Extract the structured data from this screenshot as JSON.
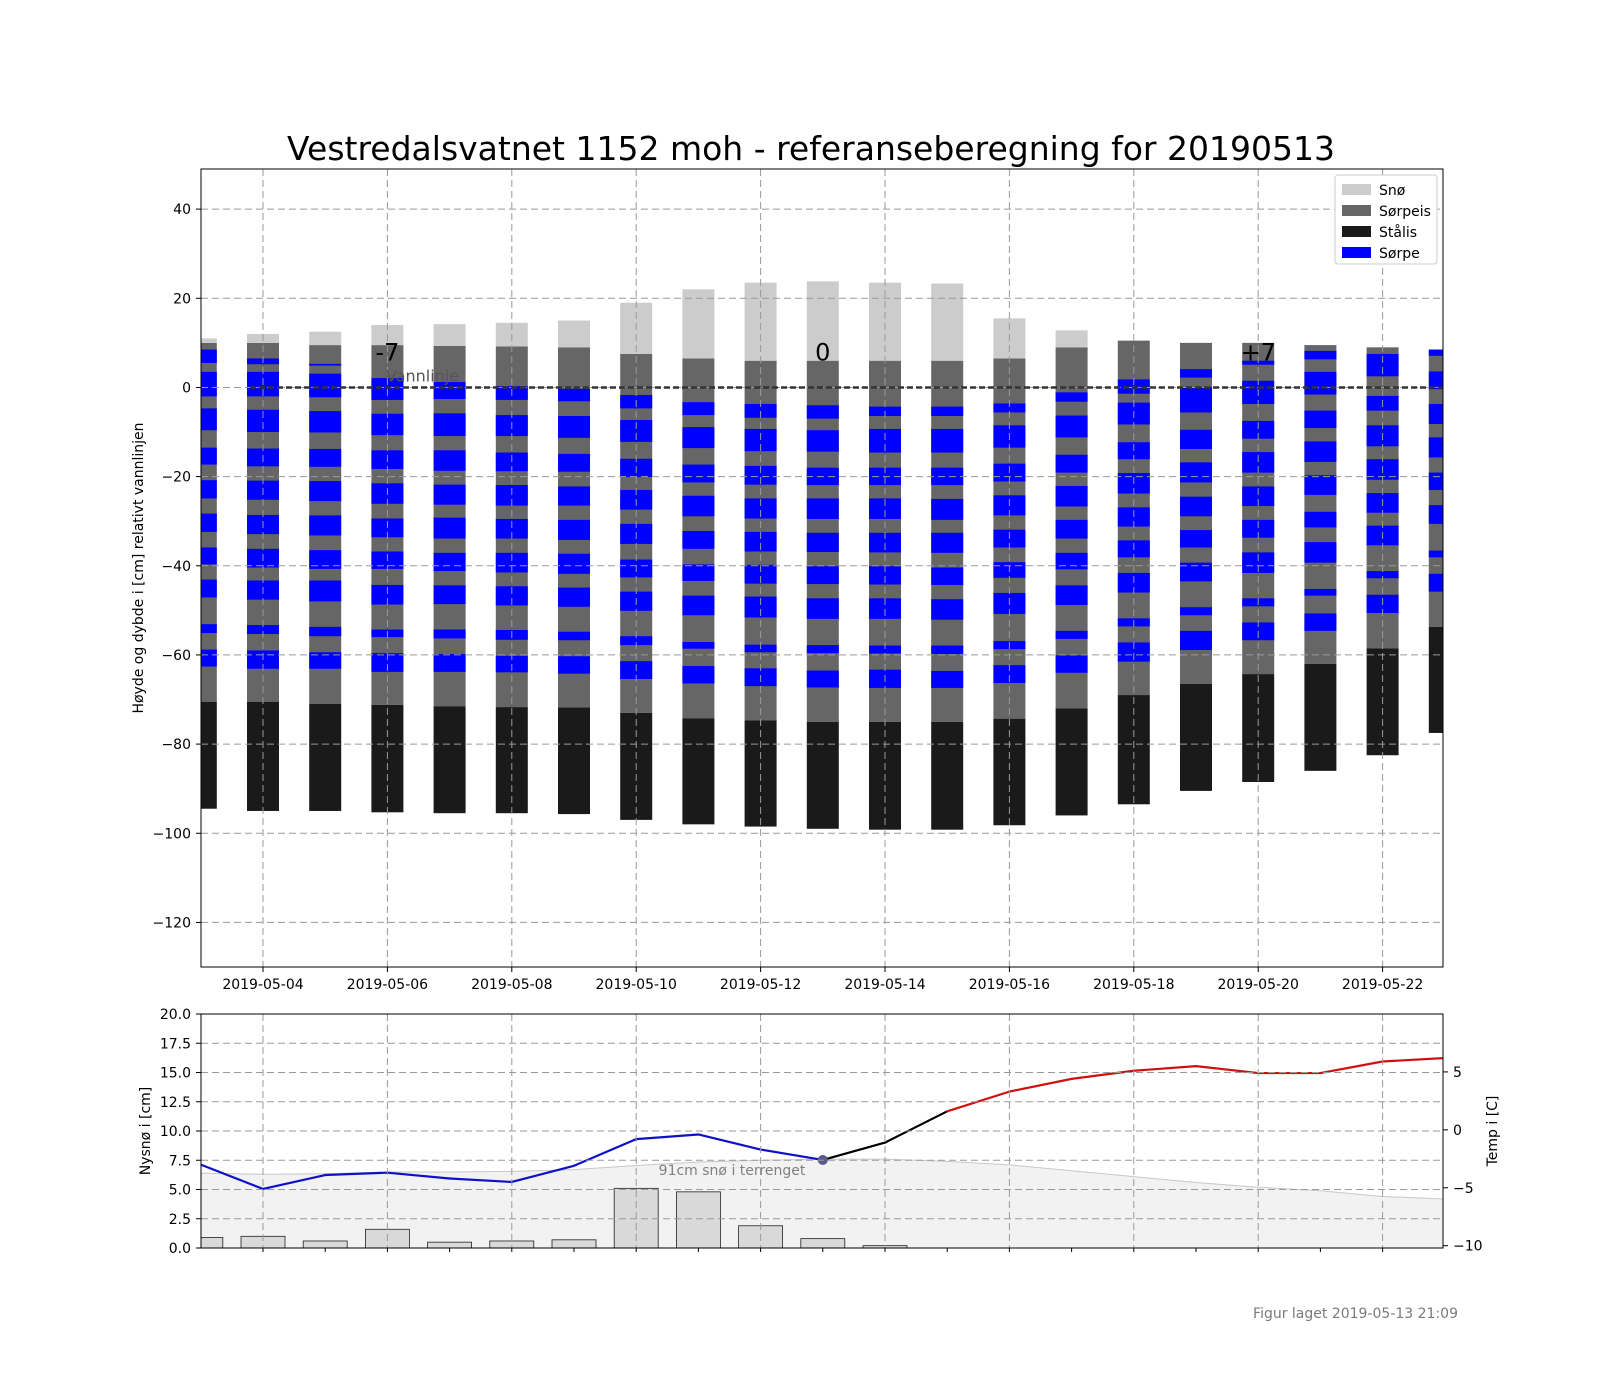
{
  "title": "Vestredalsvatnet 1152 moh - referanseberegning for 20190513",
  "footer": "Figur laget 2019-05-13 21:09",
  "colors": {
    "sno": "#cccccc",
    "sorpeis": "#666666",
    "stalis": "#1a1a1a",
    "sorpe": "#0000ff",
    "temp_cold": "#1010c8",
    "temp_warm": "#d01010",
    "temp_fc": "#000000",
    "terrain": "#f2f2f2",
    "bar_fill": "#d9d9d9"
  },
  "chart_data": [
    {
      "type": "bar",
      "stacked": true,
      "ylabel": "Høyde og dybde i [cm] relativt vannlinjen",
      "ylim": [
        -130,
        49
      ],
      "yticks": [
        40,
        20,
        0,
        -20,
        -40,
        -60,
        -80,
        -100,
        -120
      ],
      "grid": true,
      "legend_position": "top-right",
      "legend": [
        "Snø",
        "Sørpeis",
        "Stålis",
        "Sørpe"
      ],
      "xticks": [
        "2019-05-04",
        "2019-05-06",
        "2019-05-08",
        "2019-05-10",
        "2019-05-12",
        "2019-05-14",
        "2019-05-16",
        "2019-05-18",
        "2019-05-20",
        "2019-05-22"
      ],
      "waterline_label": "Vannlinje",
      "annotations": [
        {
          "text": "-7",
          "date": "2019-05-06",
          "y": 6
        },
        {
          "text": "0",
          "date": "2019-05-13",
          "y": 6
        },
        {
          "text": "+7",
          "date": "2019-05-20",
          "y": 6
        }
      ],
      "dates": [
        "2019-05-03",
        "2019-05-04",
        "2019-05-05",
        "2019-05-06",
        "2019-05-07",
        "2019-05-08",
        "2019-05-09",
        "2019-05-10",
        "2019-05-11",
        "2019-05-12",
        "2019-05-13",
        "2019-05-14",
        "2019-05-15",
        "2019-05-16",
        "2019-05-17",
        "2019-05-18",
        "2019-05-19",
        "2019-05-20",
        "2019-05-21",
        "2019-05-22",
        "2019-05-23"
      ],
      "snow": [
        [
          10,
          11
        ],
        [
          10,
          12
        ],
        [
          9.5,
          12.5
        ],
        [
          9.5,
          14
        ],
        [
          9.3,
          14.2
        ],
        [
          9.2,
          14.5
        ],
        [
          9,
          15
        ],
        [
          7.5,
          19
        ],
        [
          6.5,
          22
        ],
        [
          6,
          23.5
        ],
        [
          6,
          23.8
        ],
        [
          6,
          23.5
        ],
        [
          6,
          23.3
        ],
        [
          6.5,
          15.5
        ],
        [
          9,
          12.8
        ],
        [
          10.5,
          10.5
        ],
        [
          10,
          10
        ],
        [
          10,
          10
        ],
        [
          9.5,
          9.5
        ],
        [
          9,
          9
        ],
        [
          8.5,
          8.5
        ]
      ],
      "stalis": [
        [
          -70.5,
          -94.5
        ],
        [
          -70.5,
          -95
        ],
        [
          -71,
          -95
        ],
        [
          -71.2,
          -95.3
        ],
        [
          -71.5,
          -95.5
        ],
        [
          -71.7,
          -95.5
        ],
        [
          -71.8,
          -95.7
        ],
        [
          -73,
          -97
        ],
        [
          -74.2,
          -98
        ],
        [
          -74.7,
          -98.5
        ],
        [
          -75,
          -99
        ],
        [
          -75,
          -99.2
        ],
        [
          -75,
          -99.2
        ],
        [
          -74.3,
          -98.2
        ],
        [
          -72,
          -96
        ],
        [
          -69,
          -93.5
        ],
        [
          -66.5,
          -90.5
        ],
        [
          -64.3,
          -88.5
        ],
        [
          -62,
          -86
        ],
        [
          -58.5,
          -82.5
        ],
        [
          -53.7,
          -77.5
        ]
      ],
      "sorpe_layers": [
        [
          [
            8.5,
            5.5
          ],
          [
            3.5,
            -2
          ],
          [
            -4.7,
            -9.6
          ],
          [
            -13.5,
            -17.3
          ],
          [
            -20.8,
            -24.9
          ],
          [
            -28.3,
            -32.4
          ],
          [
            -35.9,
            -39.7
          ],
          [
            -43.1,
            -47.1
          ],
          [
            -53.1,
            -55.1
          ],
          [
            -58.8,
            -62.6
          ]
        ],
        [
          [
            6.5,
            5.2
          ],
          [
            3.5,
            -2
          ],
          [
            -5,
            -10
          ],
          [
            -13.7,
            -17.7
          ],
          [
            -20.9,
            -25.2
          ],
          [
            -28.6,
            -32.9
          ],
          [
            -36.2,
            -40.4
          ],
          [
            -43.3,
            -47.6
          ],
          [
            -53.3,
            -55.3
          ],
          [
            -59,
            -63.1
          ]
        ],
        [
          [
            5.3,
            4.9
          ],
          [
            3.1,
            -2.2
          ],
          [
            -5.3,
            -10.1
          ],
          [
            -13.8,
            -17.8
          ],
          [
            -21,
            -25.5
          ],
          [
            -28.7,
            -33.2
          ],
          [
            -36.5,
            -40.7
          ],
          [
            -43.3,
            -48
          ],
          [
            -53.7,
            -55.8
          ],
          [
            -59.4,
            -63.1
          ]
        ],
        [
          [
            2.1,
            -2.8
          ],
          [
            -5.9,
            -10.7
          ],
          [
            -14.1,
            -18.3
          ],
          [
            -21.5,
            -26.1
          ],
          [
            -29.4,
            -33.6
          ],
          [
            -36.8,
            -40.7
          ],
          [
            -44.3,
            -48.7
          ],
          [
            -54.3,
            -56
          ],
          [
            -59.6,
            -63.8
          ]
        ],
        [
          [
            1.2,
            -2.6
          ],
          [
            -5.8,
            -10.9
          ],
          [
            -14.1,
            -18.7
          ],
          [
            -21.8,
            -26.3
          ],
          [
            -29.2,
            -33.9
          ],
          [
            -37.1,
            -41.2
          ],
          [
            -44.4,
            -48.6
          ],
          [
            -54.3,
            -56.3
          ],
          [
            -59.8,
            -63.8
          ]
        ],
        [
          [
            0.3,
            -2.8
          ],
          [
            -6.2,
            -10.9
          ],
          [
            -14.6,
            -18.8
          ],
          [
            -21.9,
            -26.5
          ],
          [
            -29.5,
            -33.9
          ],
          [
            -37.1,
            -41.5
          ],
          [
            -44.6,
            -48.9
          ],
          [
            -54.4,
            -56.6
          ],
          [
            -60.2,
            -63.9
          ]
        ],
        [
          [
            -0.3,
            -3.1
          ],
          [
            -6.4,
            -11.3
          ],
          [
            -14.9,
            -18.9
          ],
          [
            -22.2,
            -26.5
          ],
          [
            -29.7,
            -34.2
          ],
          [
            -37.3,
            -41.8
          ],
          [
            -44.9,
            -49.2
          ],
          [
            -54.8,
            -56.7
          ],
          [
            -60.3,
            -64.2
          ]
        ],
        [
          [
            -1.7,
            -4.7
          ],
          [
            -7.3,
            -12.2
          ],
          [
            -16,
            -20.1
          ],
          [
            -23,
            -27.4
          ],
          [
            -30.6,
            -35.1
          ],
          [
            -38.6,
            -42.6
          ],
          [
            -45.8,
            -50.1
          ],
          [
            -55.8,
            -57.8
          ],
          [
            -61.4,
            -65.4
          ]
        ],
        [
          [
            -3.3,
            -6.2
          ],
          [
            -8.9,
            -13.6
          ],
          [
            -17.3,
            -21.3
          ],
          [
            -24.3,
            -28.9
          ],
          [
            -32.2,
            -36.2
          ],
          [
            -39.7,
            -43.4
          ],
          [
            -46.7,
            -51.1
          ],
          [
            -57.1,
            -58.6
          ],
          [
            -62.5,
            -66.4
          ]
        ],
        [
          [
            -3.7,
            -6.8
          ],
          [
            -9.3,
            -14.3
          ],
          [
            -17.6,
            -21.8
          ],
          [
            -24.9,
            -29.4
          ],
          [
            -32.4,
            -36.8
          ],
          [
            -39.8,
            -44
          ],
          [
            -46.9,
            -51.6
          ],
          [
            -57.7,
            -59.4
          ],
          [
            -63,
            -67
          ]
        ],
        [
          [
            -4,
            -7
          ],
          [
            -9.6,
            -14.4
          ],
          [
            -18,
            -21.9
          ],
          [
            -24.9,
            -29.5
          ],
          [
            -32.6,
            -36.9
          ],
          [
            -40.1,
            -44.1
          ],
          [
            -47.3,
            -51.9
          ],
          [
            -57.8,
            -59.6
          ],
          [
            -63.5,
            -67.3
          ]
        ],
        [
          [
            -4.3,
            -6.4
          ],
          [
            -9.3,
            -14.6
          ],
          [
            -18,
            -21.9
          ],
          [
            -24.9,
            -29.5
          ],
          [
            -32.6,
            -37
          ],
          [
            -40.1,
            -44.2
          ],
          [
            -47.3,
            -51.9
          ],
          [
            -57.9,
            -59.7
          ],
          [
            -63.3,
            -67.4
          ]
        ],
        [
          [
            -4.3,
            -6.4
          ],
          [
            -9.3,
            -14.6
          ],
          [
            -18,
            -21.9
          ],
          [
            -25,
            -29.7
          ],
          [
            -32.6,
            -37.1
          ],
          [
            -40.4,
            -44.3
          ],
          [
            -47.5,
            -52.1
          ],
          [
            -57.9,
            -59.8
          ],
          [
            -63.6,
            -67.4
          ]
        ],
        [
          [
            -3.6,
            -5.6
          ],
          [
            -8.5,
            -13.5
          ],
          [
            -17.1,
            -21.1
          ],
          [
            -24.2,
            -28.7
          ],
          [
            -31.9,
            -35.9
          ],
          [
            -39.2,
            -42.7
          ],
          [
            -46.1,
            -50.8
          ],
          [
            -56.9,
            -58.7
          ],
          [
            -62.3,
            -66.3
          ]
        ],
        [
          [
            -1.1,
            -3.2
          ],
          [
            -6.3,
            -11.2
          ],
          [
            -15.1,
            -19.1
          ],
          [
            -22.1,
            -26.7
          ],
          [
            -29.7,
            -33.9
          ],
          [
            -37.1,
            -40.8
          ],
          [
            -44.4,
            -48.8
          ],
          [
            -54.6,
            -56.4
          ],
          [
            -60.1,
            -64
          ]
        ],
        [
          [
            1.8,
            -1.4
          ],
          [
            -3.4,
            -8.3
          ],
          [
            -12.3,
            -16.1
          ],
          [
            -19.2,
            -23.8
          ],
          [
            -26.9,
            -31.2
          ],
          [
            -34.3,
            -38.1
          ],
          [
            -41.6,
            -46
          ],
          [
            -51.8,
            -53.6
          ],
          [
            -57.2,
            -61.5
          ]
        ],
        [
          [
            4.1,
            2.2
          ],
          [
            0.1,
            -5.6
          ],
          [
            -9.5,
            -13.8
          ],
          [
            -16.8,
            -21.3
          ],
          [
            -24.5,
            -28.9
          ],
          [
            -32,
            -35.9
          ],
          [
            -39.3,
            -43.5
          ],
          [
            -49.3,
            -51.1
          ],
          [
            -54.6,
            -58.9
          ]
        ],
        [
          [
            6,
            5.1
          ],
          [
            1.5,
            -3.7
          ],
          [
            -7.5,
            -11.5
          ],
          [
            -14.5,
            -19.1
          ],
          [
            -22.2,
            -26.6
          ],
          [
            -29.7,
            -33.7
          ],
          [
            -37,
            -41.6
          ],
          [
            -47.3,
            -49.1
          ],
          [
            -52.7,
            -56.7
          ]
        ],
        [
          [
            8.2,
            6.3
          ],
          [
            3.5,
            -1.6
          ],
          [
            -5.2,
            -9.1
          ],
          [
            -12.1,
            -16.7
          ],
          [
            -19.7,
            -24.1
          ],
          [
            -27.9,
            -31.4
          ],
          [
            -34.7,
            -39.3
          ],
          [
            -45.2,
            -46.7
          ],
          [
            -50.7,
            -54.6
          ]
        ],
        [
          [
            7.5,
            2.5
          ],
          [
            -1.9,
            -5.2
          ],
          [
            -8.5,
            -13.2
          ],
          [
            -16.1,
            -20.7
          ],
          [
            -23.7,
            -28.1
          ],
          [
            -31,
            -35.4
          ],
          [
            -41.2,
            -42.8
          ],
          [
            -46.5,
            -50.6
          ]
        ],
        [
          [
            8.5,
            7.1
          ],
          [
            3.6,
            -0.4
          ],
          [
            -3.7,
            -8.2
          ],
          [
            -11.2,
            -15.7
          ],
          [
            -19.1,
            -23
          ],
          [
            -26.4,
            -30.6
          ],
          [
            -36.6,
            -38.1
          ],
          [
            -41.8,
            -45.8
          ]
        ]
      ]
    },
    {
      "type": "bar",
      "ylabel": "Nysnø i [cm]",
      "ylim": [
        0,
        20
      ],
      "yticks": [
        0.0,
        2.5,
        5.0,
        7.5,
        10.0,
        12.5,
        15.0,
        17.5,
        20.0
      ],
      "grid": true,
      "terrain_label": "91cm snø i terrenget",
      "dates": [
        "2019-05-03",
        "2019-05-04",
        "2019-05-05",
        "2019-05-06",
        "2019-05-07",
        "2019-05-08",
        "2019-05-09",
        "2019-05-10",
        "2019-05-11",
        "2019-05-12",
        "2019-05-13",
        "2019-05-14",
        "2019-05-15",
        "2019-05-16",
        "2019-05-17",
        "2019-05-18",
        "2019-05-19",
        "2019-05-20",
        "2019-05-21",
        "2019-05-22",
        "2019-05-23"
      ],
      "new_snow": [
        0.9,
        1.0,
        0.6,
        1.6,
        0.5,
        0.6,
        0.7,
        5.1,
        4.8,
        1.9,
        0.8,
        0.2,
        0,
        0,
        0,
        0,
        0,
        0,
        0,
        0,
        0
      ],
      "terrain_snow": [
        6.4,
        6.3,
        6.35,
        6.5,
        6.5,
        6.55,
        6.7,
        7.05,
        7.35,
        7.5,
        7.6,
        7.6,
        7.4,
        7.1,
        6.6,
        6.1,
        5.6,
        5.2,
        4.9,
        4.4,
        4.2
      ],
      "secondary_axis": {
        "ylabel": "Temp i [C]",
        "yticks": [
          5,
          0,
          -5,
          -10
        ],
        "ylim": [
          -10.2,
          10
        ],
        "temperature": [
          -3,
          -5.1,
          -3.9,
          -3.7,
          -4.2,
          -4.5,
          -3.1,
          -0.8,
          -0.4,
          -1.7,
          -2.6,
          -1.1,
          1.6,
          3.3,
          4.4,
          5.1,
          5.5,
          4.9,
          4.9,
          5.9,
          6.2
        ],
        "observed_until": "2019-05-13",
        "marker": {
          "date": "2019-05-13",
          "value": -2.6,
          "color": "#5a5a8c"
        }
      }
    }
  ]
}
